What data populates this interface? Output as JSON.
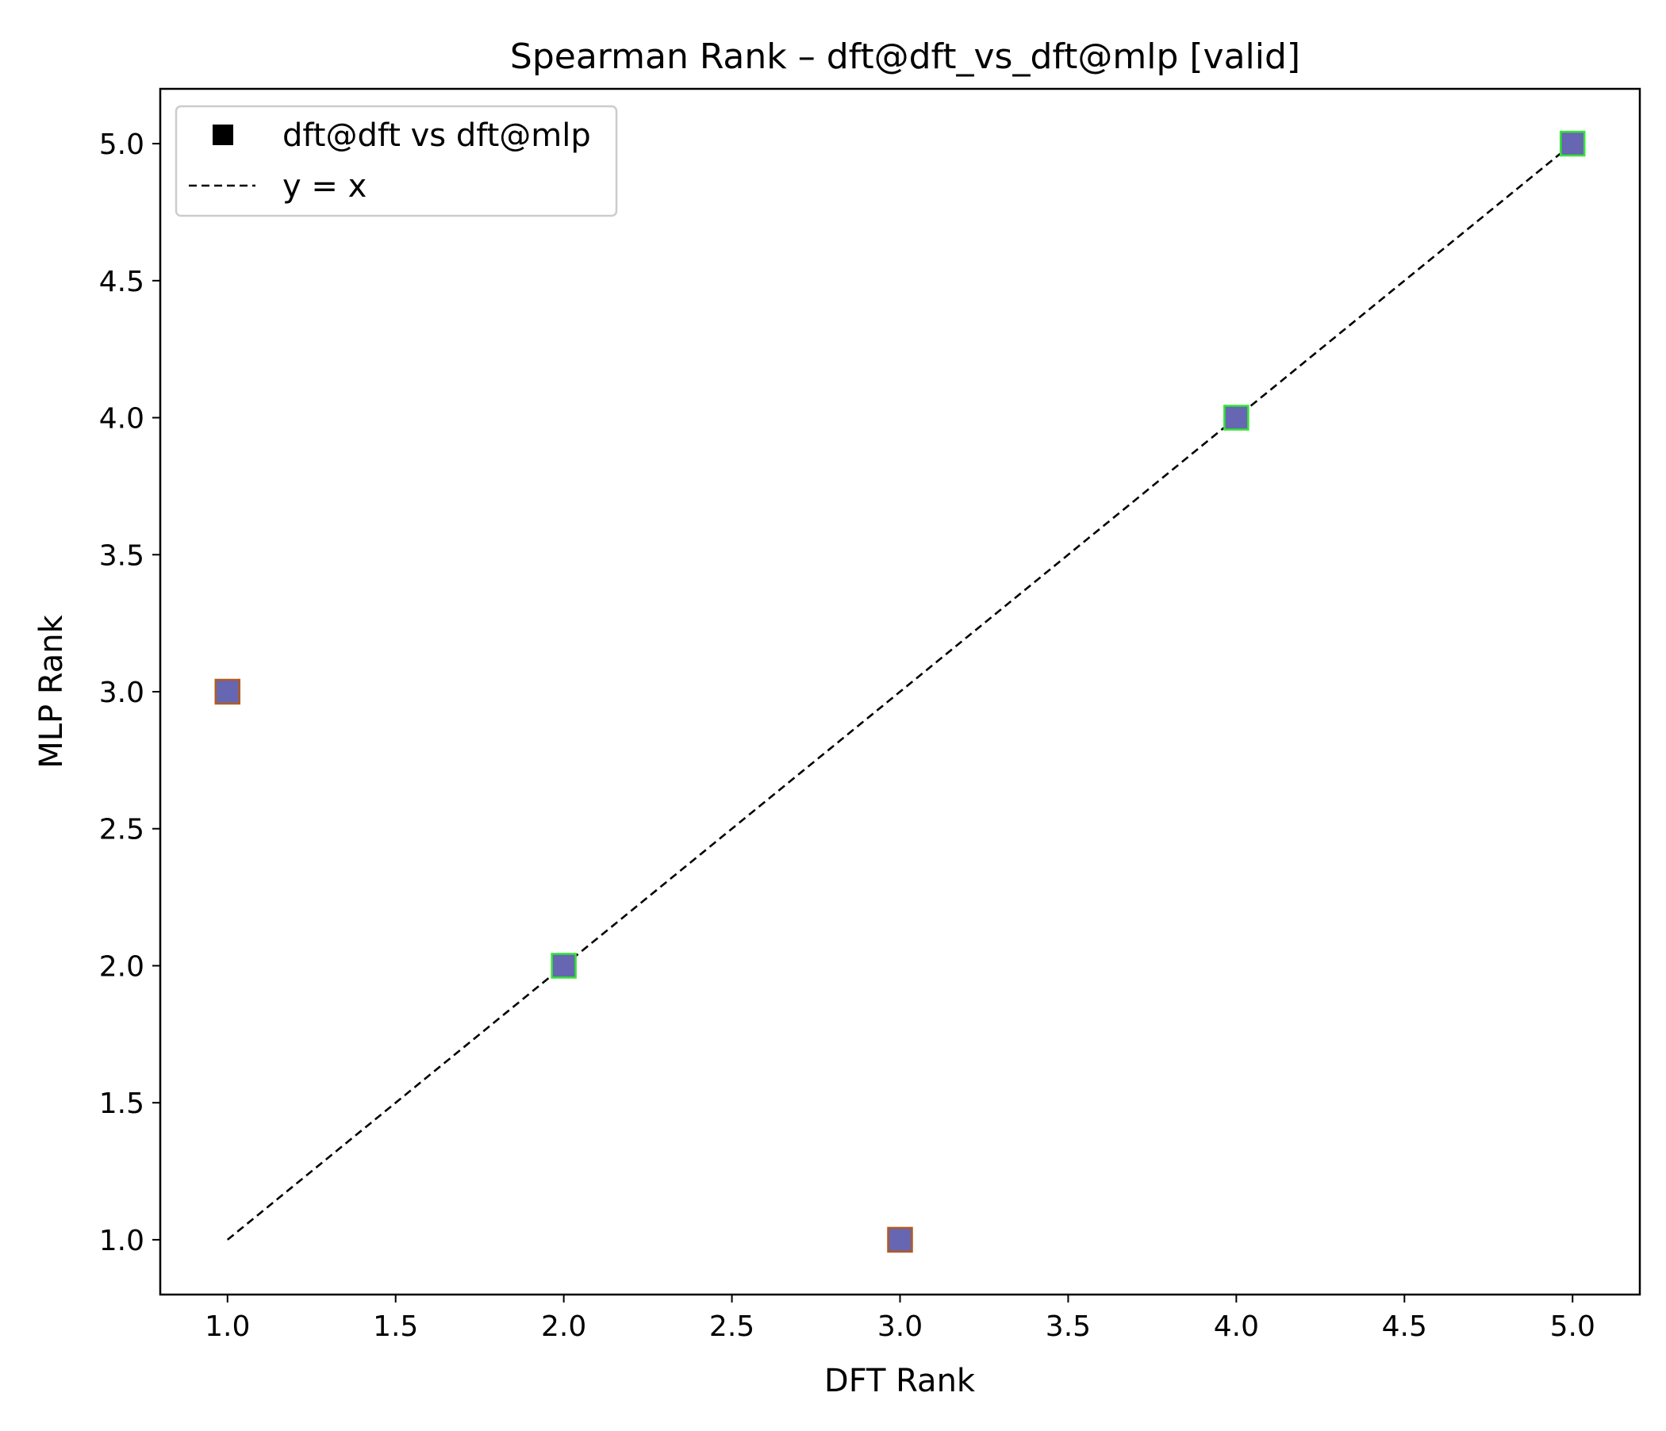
{
  "chart_data": {
    "type": "scatter",
    "title": "Spearman Rank – dft@dft_vs_dft@mlp [valid]",
    "xlabel": "DFT Rank",
    "ylabel": "MLP Rank",
    "xlim": [
      0.8,
      5.2
    ],
    "ylim": [
      0.8,
      5.2
    ],
    "xticks": [
      "1.0",
      "1.5",
      "2.0",
      "2.5",
      "3.0",
      "3.5",
      "4.0",
      "4.5",
      "5.0"
    ],
    "yticks": [
      "1.0",
      "1.5",
      "2.0",
      "2.5",
      "3.0",
      "3.5",
      "4.0",
      "4.5",
      "5.0"
    ],
    "grid": false,
    "legend_position": "upper-left",
    "series": [
      {
        "name": "dft@dft vs dft@mlp",
        "marker": "square",
        "fill_color": "#6666b3",
        "points": [
          {
            "x": 1,
            "y": 3,
            "edge_color": "#b35a1f"
          },
          {
            "x": 2,
            "y": 2,
            "edge_color": "#33e633"
          },
          {
            "x": 3,
            "y": 1,
            "edge_color": "#b35a1f"
          },
          {
            "x": 4,
            "y": 4,
            "edge_color": "#33e633"
          },
          {
            "x": 5,
            "y": 5,
            "edge_color": "#33e633"
          }
        ]
      },
      {
        "name": "y = x",
        "style": "dashed-line",
        "color": "#000000",
        "x": [
          1,
          5
        ],
        "y": [
          1,
          5
        ]
      }
    ]
  }
}
